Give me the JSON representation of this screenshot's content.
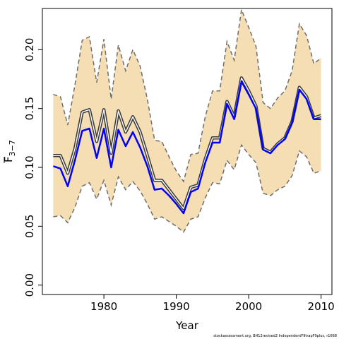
{
  "chart_data": {
    "type": "line",
    "title": "",
    "xlabel": "Year",
    "ylabel": "F",
    "ylabel_subscript": "3−7",
    "xlim": [
      1971.5,
      2011.5
    ],
    "ylim": [
      -0.008,
      0.235
    ],
    "x_ticks": [
      1980,
      1990,
      2000,
      2010
    ],
    "y_ticks": [
      0.0,
      0.05,
      0.1,
      0.15,
      0.2
    ],
    "y_tick_labels": [
      "0.00",
      "0.05",
      "0.10",
      "0.15",
      "0.20"
    ],
    "grid": false,
    "legend": "none",
    "x": [
      1973,
      1974,
      1975,
      1976,
      1977,
      1978,
      1979,
      1980,
      1981,
      1982,
      1983,
      1984,
      1985,
      1986,
      1987,
      1988,
      1989,
      1990,
      1991,
      1992,
      1993,
      1994,
      1995,
      1996,
      1997,
      1998,
      1999,
      2000,
      2001,
      2002,
      2003,
      2004,
      2005,
      2006,
      2007,
      2008,
      2009,
      2010
    ],
    "band": {
      "color": "#f5deb3",
      "edge_color": "#6e6e6e",
      "upper": [
        0.162,
        0.16,
        0.136,
        0.17,
        0.208,
        0.211,
        0.172,
        0.209,
        0.158,
        0.204,
        0.182,
        0.2,
        0.186,
        0.158,
        0.123,
        0.122,
        0.109,
        0.097,
        0.088,
        0.111,
        0.112,
        0.143,
        0.165,
        0.165,
        0.207,
        0.191,
        0.234,
        0.219,
        0.203,
        0.155,
        0.15,
        0.159,
        0.165,
        0.182,
        0.222,
        0.212,
        0.188,
        0.193
      ],
      "lower": [
        0.058,
        0.059,
        0.053,
        0.066,
        0.084,
        0.087,
        0.073,
        0.089,
        0.068,
        0.092,
        0.081,
        0.088,
        0.08,
        0.069,
        0.056,
        0.058,
        0.054,
        0.05,
        0.045,
        0.056,
        0.058,
        0.074,
        0.087,
        0.086,
        0.106,
        0.098,
        0.119,
        0.111,
        0.104,
        0.078,
        0.076,
        0.081,
        0.084,
        0.093,
        0.114,
        0.109,
        0.095,
        0.097
      ]
    },
    "series": [
      {
        "color": "#3c3c3c",
        "style": "double",
        "values": [
          0.11,
          0.11,
          0.095,
          0.116,
          0.147,
          0.149,
          0.122,
          0.149,
          0.112,
          0.148,
          0.13,
          0.143,
          0.13,
          0.11,
          0.089,
          0.089,
          0.081,
          0.073,
          0.065,
          0.083,
          0.085,
          0.107,
          0.125,
          0.125,
          0.156,
          0.143,
          0.176,
          0.165,
          0.152,
          0.116,
          0.113,
          0.12,
          0.125,
          0.139,
          0.168,
          0.16,
          0.142,
          0.144
        ]
      },
      {
        "color": "#0000ff",
        "style": "solid",
        "values": [
          0.101,
          0.099,
          0.084,
          0.106,
          0.131,
          0.133,
          0.108,
          0.133,
          0.1,
          0.132,
          0.118,
          0.13,
          0.117,
          0.101,
          0.081,
          0.082,
          0.076,
          0.069,
          0.061,
          0.079,
          0.082,
          0.104,
          0.121,
          0.121,
          0.154,
          0.141,
          0.173,
          0.162,
          0.15,
          0.115,
          0.112,
          0.119,
          0.124,
          0.138,
          0.166,
          0.158,
          0.141,
          0.141
        ]
      }
    ]
  },
  "footnote": "stockassessment.org, BH12revised2 IndependentF9trapF9plus, r1668"
}
